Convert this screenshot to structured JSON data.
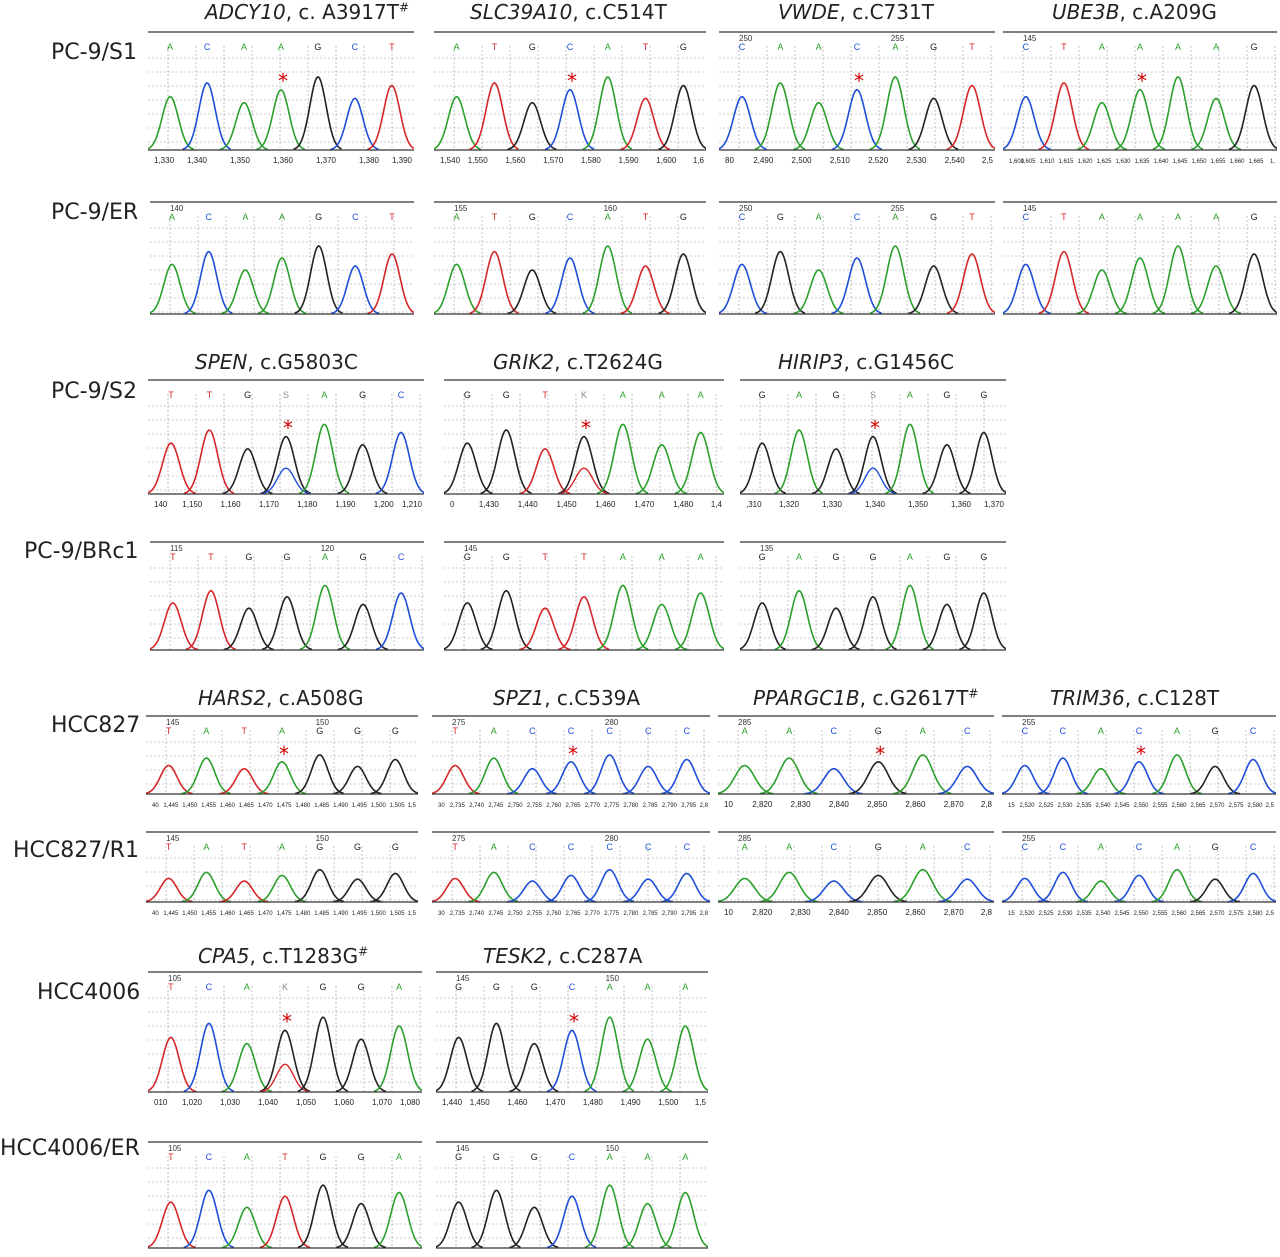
{
  "colors": {
    "A": "#2ca02c",
    "C": "#1f4fd8",
    "G": "#222222",
    "T": "#d62728",
    "star": "#d10000",
    "grid": "#9a9a9a"
  },
  "row_labels": {
    "r0": "PC-9/S1",
    "r1": "PC-9/ER",
    "r2": "PC-9/S2",
    "r3": "PC-9/BRc1",
    "r4": "HCC827",
    "r5": "HCC827/R1",
    "r6": "HCC4006",
    "r7": "HCC4006/ER"
  },
  "group_titles": [
    {
      "gene": "ADCY10",
      "mut": ", c. A3917T",
      "mark": "#"
    },
    {
      "gene": "SLC39A10",
      "mut": ", c.C514T",
      "mark": ""
    },
    {
      "gene": "VWDE",
      "mut": ", c.C731T",
      "mark": ""
    },
    {
      "gene": "UBE3B",
      "mut": ", c.A209G",
      "mark": ""
    },
    {
      "gene": "SPEN",
      "mut": ", c.G5803C",
      "mark": ""
    },
    {
      "gene": "GRIK2",
      "mut": ", c.T2624G",
      "mark": ""
    },
    {
      "gene": "HIRIP3",
      "mut": ", c.G1456C",
      "mark": ""
    },
    {
      "gene": "HARS2",
      "mut": ", c.A508G",
      "mark": ""
    },
    {
      "gene": "SPZ1",
      "mut": ", c.C539A",
      "mark": ""
    },
    {
      "gene": "PPARGC1B",
      "mut": ", c.G2617T",
      "mark": "#"
    },
    {
      "gene": "TRIM36",
      "mut": ", c.C128T",
      "mark": ""
    },
    {
      "gene": "CPA5",
      "mut": ", c.T1283G",
      "mark": "#"
    },
    {
      "gene": "TESK2",
      "mut": ", c.C287A",
      "mark": ""
    }
  ],
  "panels": [
    {
      "id": "p0",
      "bases": "ACAAGCT",
      "pos_labels": [],
      "axis_labels": [
        "1,330",
        "1,340",
        "1,350",
        "1,360",
        "1,370",
        "1,380",
        "1,390"
      ],
      "mutant": true,
      "mut_index": 3
    },
    {
      "id": "p1",
      "bases": "ATGCATG",
      "pos_labels": [],
      "axis_labels": [
        "1,540",
        "1,550",
        "1,560",
        "1,570",
        "1,580",
        "1,590",
        "1,600",
        "1,6"
      ],
      "mutant": true,
      "mut_index": 3
    },
    {
      "id": "p2",
      "bases": "CAACAGT",
      "pos_labels": [
        "250",
        "255"
      ],
      "axis_labels": [
        "80",
        "2,490",
        "2,500",
        "2,510",
        "2,520",
        "2,530",
        "2,540",
        "2,5"
      ],
      "mutant": true,
      "mut_index": 3
    },
    {
      "id": "p3",
      "bases": "CTAAAAG",
      "pos_labels": [
        "145"
      ],
      "axis_labels": [
        "1,600",
        "1,605",
        "1,610",
        "1,615",
        "1,620",
        "1,625",
        "1,630",
        "1,635",
        "1,640",
        "1,645",
        "1,650",
        "1,655",
        "1,660",
        "1,665",
        "1,"
      ],
      "mutant": true,
      "mut_index": 3
    },
    {
      "id": "p4",
      "bases": "ACAAGCT",
      "pos_labels": [
        "140"
      ],
      "axis_labels": [],
      "mutant": false,
      "mut_index": 3
    },
    {
      "id": "p5",
      "bases": "ATGCATG",
      "pos_labels": [
        "155",
        "160"
      ],
      "axis_labels": [],
      "mutant": false,
      "mut_index": 3
    },
    {
      "id": "p6",
      "bases": "CGACAGT",
      "pos_labels": [
        "250",
        "255"
      ],
      "axis_labels": [],
      "mutant": false,
      "mut_index": 3
    },
    {
      "id": "p7",
      "bases": "CTAAAAG",
      "pos_labels": [
        "145"
      ],
      "axis_labels": [],
      "mutant": false,
      "mut_index": 3
    },
    {
      "id": "p8",
      "bases": "TTGSAGC",
      "pos_labels": [],
      "axis_labels": [
        "140",
        "1,150",
        "1,160",
        "1,170",
        "1,180",
        "1,190",
        "1,200",
        "1,210"
      ],
      "mutant": true,
      "mut_index": 3
    },
    {
      "id": "p9",
      "bases": "GGTKAAA",
      "pos_labels": [],
      "axis_labels": [
        "0",
        "1,430",
        "1,440",
        "1,450",
        "1,460",
        "1,470",
        "1,480",
        "1,4"
      ],
      "mutant": true,
      "mut_index": 3
    },
    {
      "id": "p10",
      "bases": "GAGSAGG",
      "pos_labels": [],
      "axis_labels": [
        ",310",
        "1,320",
        "1,330",
        "1,340",
        "1,350",
        "1,360",
        "1,370"
      ],
      "mutant": true,
      "mut_index": 3
    },
    {
      "id": "p11",
      "bases": "TTGGAGC",
      "pos_labels": [
        "115",
        "120"
      ],
      "axis_labels": [],
      "mutant": false,
      "mut_index": 3
    },
    {
      "id": "p12",
      "bases": "GGTTAAA",
      "pos_labels": [
        "145"
      ],
      "axis_labels": [],
      "mutant": false,
      "mut_index": 3
    },
    {
      "id": "p13",
      "bases": "GAGGAGG",
      "pos_labels": [
        "135"
      ],
      "axis_labels": [],
      "mutant": false,
      "mut_index": 3
    },
    {
      "id": "p14",
      "bases": "TATAGGG",
      "pos_labels": [
        "145",
        "150"
      ],
      "axis_labels": [
        "40",
        "1,445",
        "1,450",
        "1,455",
        "1,460",
        "1,465",
        "1,470",
        "1,475",
        "1,480",
        "1,485",
        "1,490",
        "1,495",
        "1,500",
        "1,505",
        "1,5"
      ],
      "mutant": true,
      "mut_index": 3
    },
    {
      "id": "p15",
      "bases": "TACCCCC",
      "pos_labels": [
        "275",
        "280"
      ],
      "axis_labels": [
        "30",
        "2,735",
        "2,740",
        "2,745",
        "2,750",
        "2,755",
        "2,760",
        "2,765",
        "2,770",
        "2,775",
        "2,780",
        "2,785",
        "2,790",
        "2,795",
        "2,8"
      ],
      "mutant": true,
      "mut_index": 3
    },
    {
      "id": "p16",
      "bases": "AACGAC",
      "pos_labels": [
        "285"
      ],
      "axis_labels": [
        "10",
        "2,820",
        "2,830",
        "2,840",
        "2,850",
        "2,860",
        "2,870",
        "2,8"
      ],
      "mutant": true,
      "mut_index": 3
    },
    {
      "id": "p17",
      "bases": "CCACAGC",
      "pos_labels": [
        "255"
      ],
      "axis_labels": [
        "15",
        "2,520",
        "2,525",
        "2,530",
        "2,535",
        "2,540",
        "2,545",
        "2,550",
        "2,555",
        "2,560",
        "2,565",
        "2,570",
        "2,575",
        "2,580",
        "2,5"
      ],
      "mutant": true,
      "mut_index": 3
    },
    {
      "id": "p18",
      "bases": "TATAGGG",
      "pos_labels": [
        "145",
        "150"
      ],
      "axis_labels": [
        "40",
        "1,445",
        "1,450",
        "1,455",
        "1,460",
        "1,465",
        "1,470",
        "1,475",
        "1,480",
        "1,485",
        "1,490",
        "1,495",
        "1,500",
        "1,505",
        "1,5"
      ],
      "mutant": false,
      "mut_index": 3
    },
    {
      "id": "p19",
      "bases": "TACCCCC",
      "pos_labels": [
        "275",
        "280"
      ],
      "axis_labels": [
        "30",
        "2,735",
        "2,740",
        "2,745",
        "2,750",
        "2,755",
        "2,760",
        "2,765",
        "2,770",
        "2,775",
        "2,780",
        "2,785",
        "2,790",
        "2,795",
        "2,8"
      ],
      "mutant": false,
      "mut_index": 3
    },
    {
      "id": "p20",
      "bases": "AACGAC",
      "pos_labels": [
        "285"
      ],
      "axis_labels": [
        "10",
        "2,820",
        "2,830",
        "2,840",
        "2,850",
        "2,860",
        "2,870",
        "2,8"
      ],
      "mutant": false,
      "mut_index": 3
    },
    {
      "id": "p21",
      "bases": "CCACAGC",
      "pos_labels": [
        "255"
      ],
      "axis_labels": [
        "15",
        "2,520",
        "2,525",
        "2,530",
        "2,535",
        "2,540",
        "2,545",
        "2,550",
        "2,555",
        "2,560",
        "2,565",
        "2,570",
        "2,575",
        "2,580",
        "2,5"
      ],
      "mutant": false,
      "mut_index": 3
    },
    {
      "id": "p22",
      "bases": "TCAKGGA",
      "pos_labels": [
        "105"
      ],
      "axis_labels": [
        "010",
        "1,020",
        "1,030",
        "1,040",
        "1,050",
        "1,060",
        "1,070",
        "1,080"
      ],
      "mutant": true,
      "mut_index": 3
    },
    {
      "id": "p23",
      "bases": "GGGCAAA",
      "pos_labels": [
        "145",
        "150"
      ],
      "axis_labels": [
        "1,440",
        "1,450",
        "1,460",
        "1,470",
        "1,480",
        "1,490",
        "1,500",
        "1,5"
      ],
      "mutant": true,
      "mut_index": 3
    },
    {
      "id": "p24",
      "bases": "TCATGGA",
      "pos_labels": [
        "105"
      ],
      "axis_labels": [],
      "mutant": false,
      "mut_index": 3
    },
    {
      "id": "p25",
      "bases": "GGGCAAA",
      "pos_labels": [
        "145",
        "150"
      ],
      "axis_labels": [],
      "mutant": false,
      "mut_index": 3
    }
  ]
}
